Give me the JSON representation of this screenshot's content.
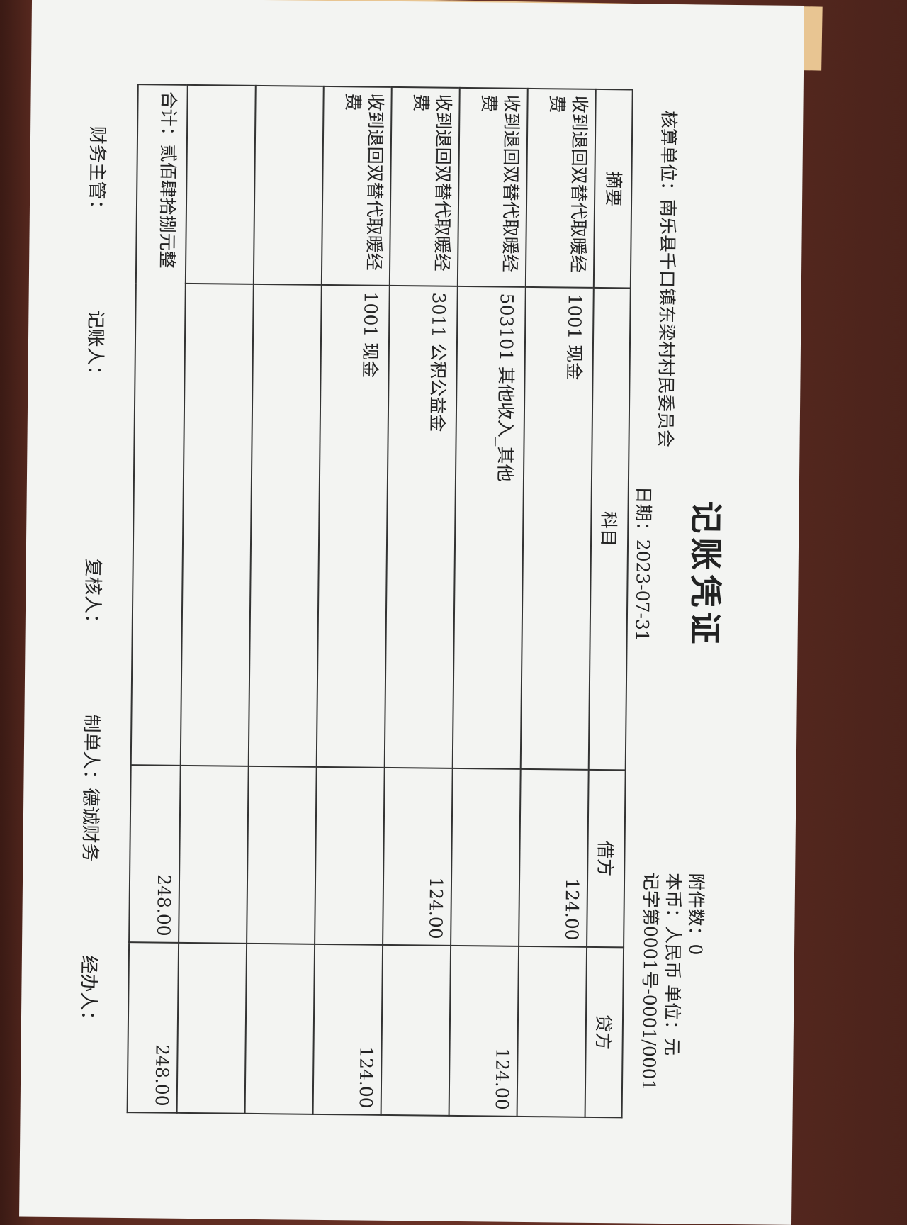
{
  "voucher": {
    "title": "记账凭证",
    "unit_label": "核算单位：南乐县千口镇东梁村村民委员会",
    "date_label": "日期：2023-07-31",
    "attachments": "附件数：0",
    "currency": "本币：人民币  单位：元",
    "number": "记字第0001号-0001/0001",
    "columns": [
      "摘要",
      "科目",
      "借方",
      "贷方"
    ],
    "rows": [
      {
        "summary": "收到退回双替代取暖经费",
        "account": "1001 现金",
        "debit": "124.00",
        "credit": ""
      },
      {
        "summary": "收到退回双替代取暖经费",
        "account": "503101 其他收入_其他",
        "debit": "",
        "credit": "124.00"
      },
      {
        "summary": "收到退回双替代取暖经费",
        "account": "3011 公积公益金",
        "debit": "124.00",
        "credit": ""
      },
      {
        "summary": "收到退回双替代取暖经费",
        "account": "1001 现金",
        "debit": "",
        "credit": "124.00"
      },
      {
        "summary": "",
        "account": "",
        "debit": "",
        "credit": ""
      },
      {
        "summary": "",
        "account": "",
        "debit": "",
        "credit": ""
      }
    ],
    "total_label": "合计：贰佰肆拾捌元整",
    "total_debit": "248.00",
    "total_credit": "248.00",
    "footer": {
      "supervisor": "财务主管：",
      "bookkeeper": "记账人：",
      "reviewer": "复核人：",
      "preparer": "制单人：德诚财务",
      "handler": "经办人："
    }
  }
}
